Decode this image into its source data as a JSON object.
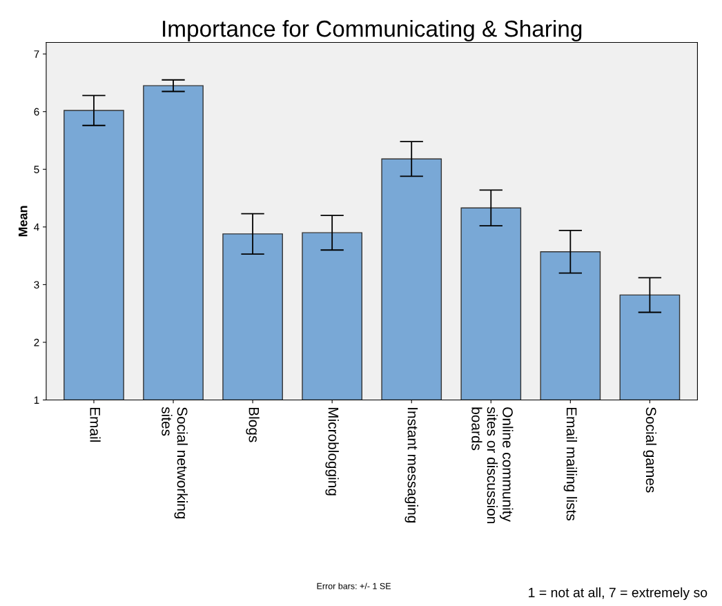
{
  "chart_data": {
    "type": "bar",
    "title": "Importance for Communicating & Sharing",
    "ylabel": "Mean",
    "categories": [
      "Email",
      "Social networking sites",
      "Blogs",
      "Microblogging",
      "Instant messaging",
      "Online community sites or discussion boards",
      "Email mailing lists",
      "Social games"
    ],
    "values": [
      6.02,
      6.45,
      3.88,
      3.9,
      5.18,
      4.33,
      3.57,
      2.82
    ],
    "errors": [
      0.26,
      0.1,
      0.35,
      0.3,
      0.3,
      0.31,
      0.37,
      0.3
    ],
    "color": "#79a8d6",
    "ylim": [
      1,
      7.2
    ],
    "yticks": [
      1,
      2,
      3,
      4,
      5,
      6,
      7
    ],
    "grid": false,
    "annotations": [
      "Error bars: +/- 1 SE",
      "1 = not at all, 7 = extremely so"
    ]
  }
}
